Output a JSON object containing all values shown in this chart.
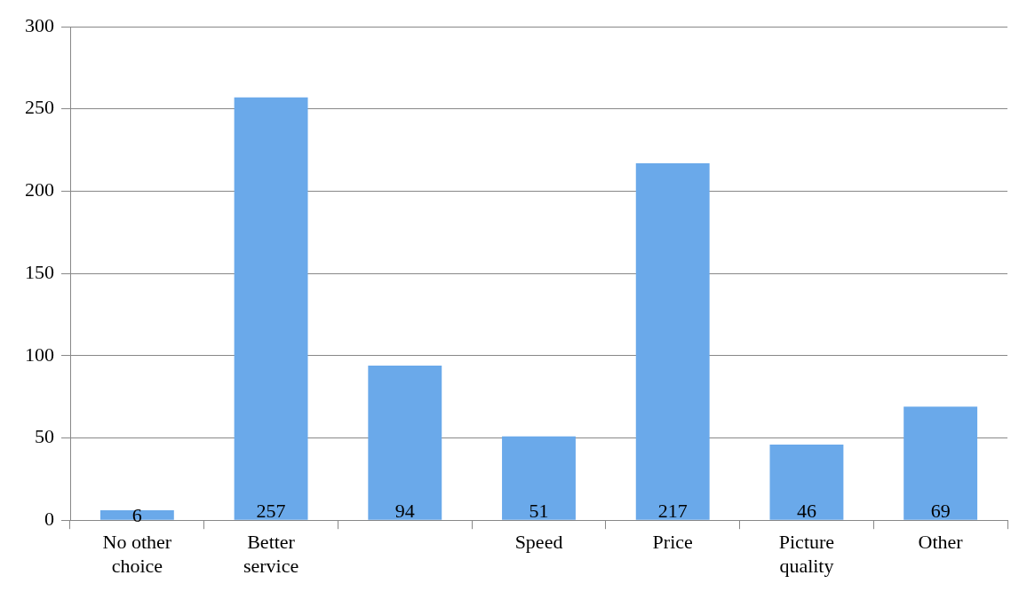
{
  "chart_data": {
    "type": "bar",
    "categories": [
      "No other choice",
      "Better service",
      null,
      "Speed",
      "Price",
      "Picture quality",
      "Other"
    ],
    "values": [
      6,
      257,
      94,
      51,
      217,
      46,
      69
    ],
    "color": "#6aa9ea",
    "ylim": [
      0,
      300
    ],
    "yticks": [
      0,
      50,
      100,
      150,
      200,
      250,
      300
    ],
    "grid": "y",
    "data_labels": true,
    "legend": false
  }
}
